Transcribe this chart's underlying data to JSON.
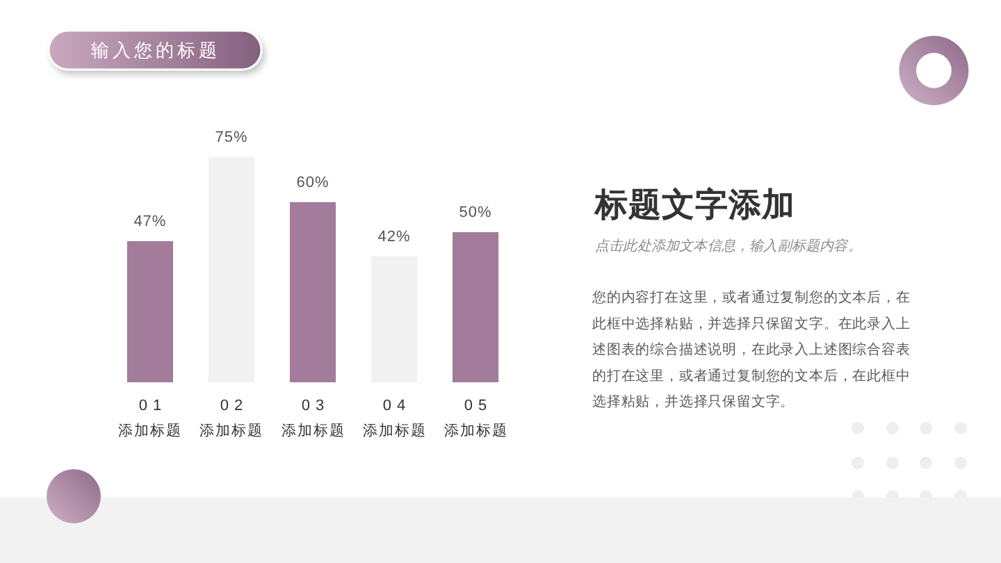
{
  "chart_data": {
    "type": "bar",
    "title": "输入您的标题",
    "categories": [
      "01\n添加标题",
      "02\n添加标题",
      "03\n添加标题",
      "04\n添加标题",
      "05\n添加标题"
    ],
    "values": [
      47,
      75,
      60,
      42,
      50
    ],
    "value_labels": [
      "47%",
      "75%",
      "60%",
      "42%",
      "50%"
    ],
    "colors": [
      "#a27c9a",
      "#f1f1f1",
      "#a27c9a",
      "#f1f1f1",
      "#a27c9a"
    ],
    "annotations": [
      "标题文字添加",
      "点击此处添加文本信息，输入副标题内容。",
      "您的内容打在这里，或者通过复制您的文本后，在此框中选择粘贴，并选择只保留文字。在此录入上述图表的综合描述说明，在此录入上述图综合容表的打在这里，或者通过复制您的文本后，在此框中选择粘贴，并选择只保留文字。"
    ]
  }
}
